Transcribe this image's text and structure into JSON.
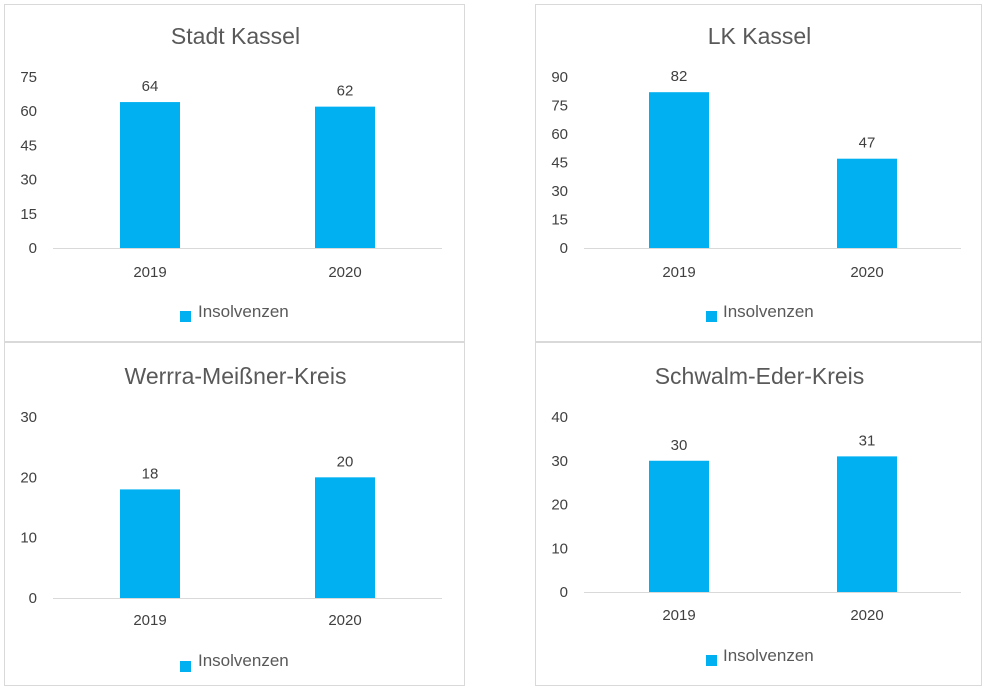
{
  "chart_data": [
    {
      "type": "bar",
      "title": "Stadt Kassel",
      "categories": [
        "2019",
        "2020"
      ],
      "series": [
        {
          "name": "Insolvenzen",
          "values": [
            64,
            62
          ]
        }
      ],
      "yticks": [
        0,
        15,
        30,
        45,
        60,
        75
      ],
      "ylim": [
        0,
        75
      ],
      "legend": "bottom",
      "color": "#00b0f0"
    },
    {
      "type": "bar",
      "title": "LK Kassel",
      "categories": [
        "2019",
        "2020"
      ],
      "series": [
        {
          "name": "Insolvenzen",
          "values": [
            82,
            47
          ]
        }
      ],
      "yticks": [
        0,
        15,
        30,
        45,
        60,
        75,
        90
      ],
      "ylim": [
        0,
        90
      ],
      "legend": "bottom",
      "color": "#00b0f0"
    },
    {
      "type": "bar",
      "title": "Werrra-Meißner-Kreis",
      "categories": [
        "2019",
        "2020"
      ],
      "series": [
        {
          "name": "Insolvenzen",
          "values": [
            18,
            20
          ]
        }
      ],
      "yticks": [
        0,
        10,
        20,
        30
      ],
      "ylim": [
        0,
        30
      ],
      "legend": "bottom",
      "color": "#00b0f0"
    },
    {
      "type": "bar",
      "title": "Schwalm-Eder-Kreis",
      "categories": [
        "2019",
        "2020"
      ],
      "series": [
        {
          "name": "Insolvenzen",
          "values": [
            30,
            31
          ]
        }
      ],
      "yticks": [
        0,
        10,
        20,
        30,
        40
      ],
      "ylim": [
        0,
        40
      ],
      "legend": "bottom",
      "color": "#00b0f0"
    }
  ]
}
